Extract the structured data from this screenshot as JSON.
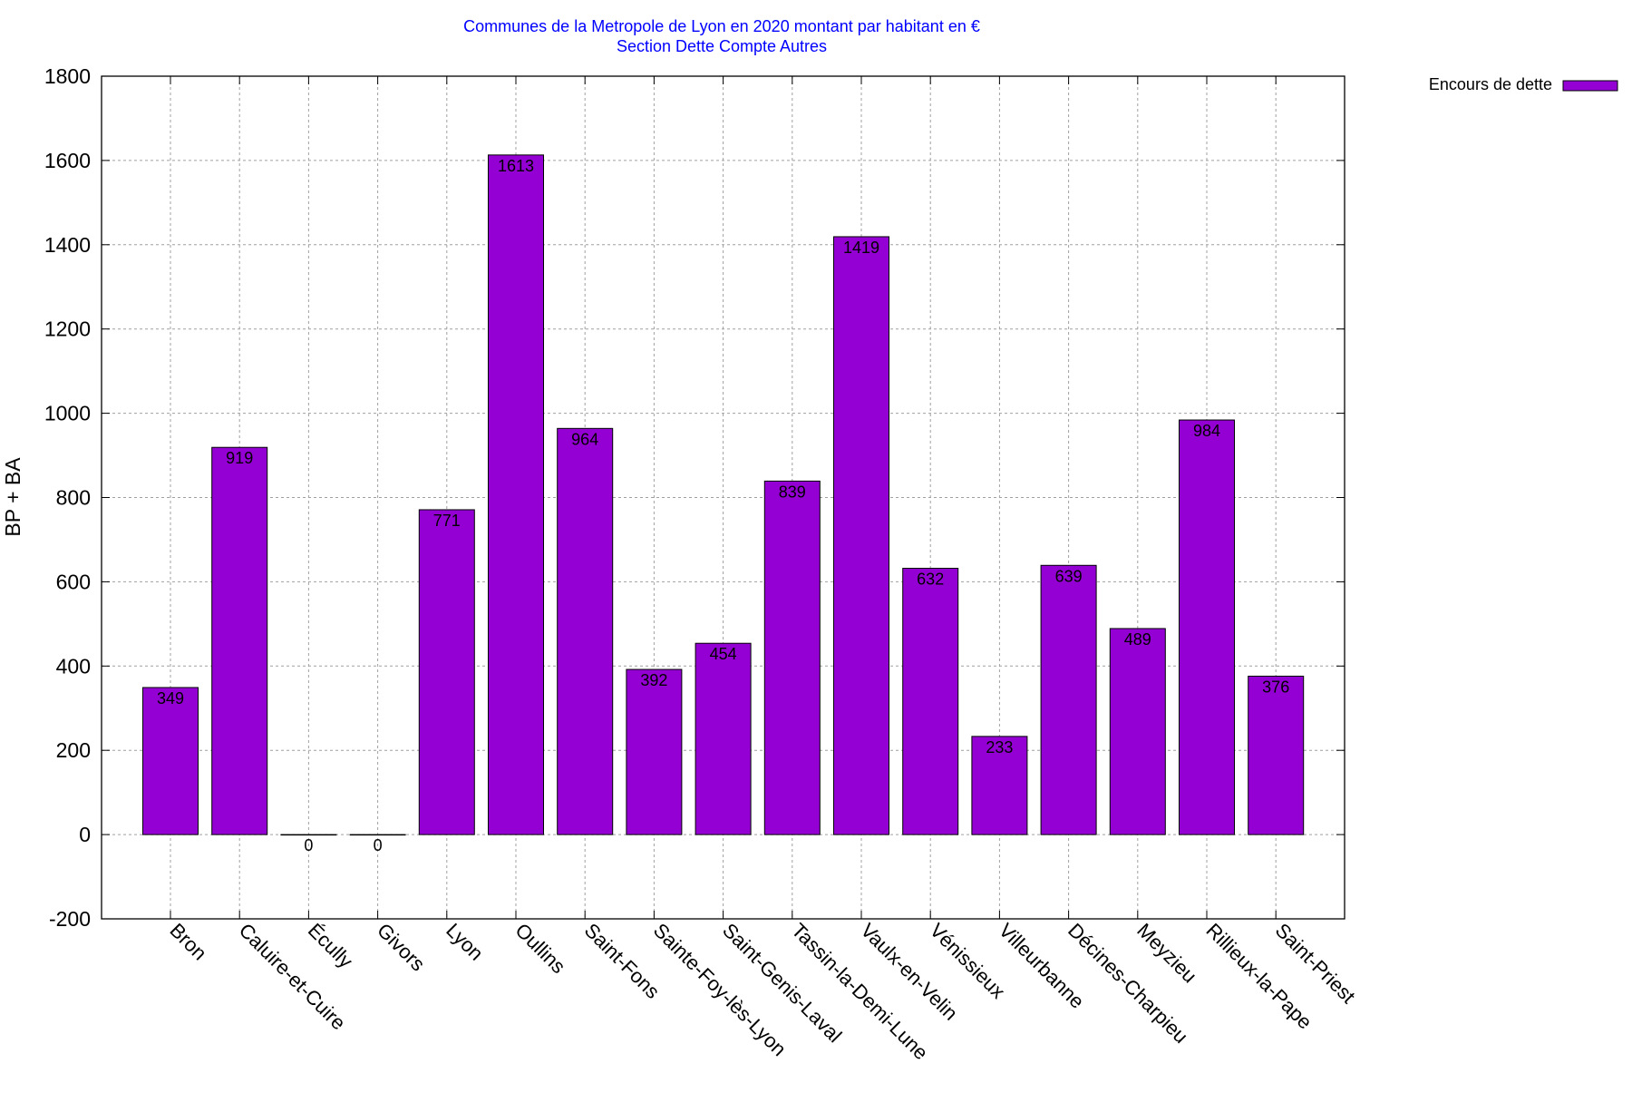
{
  "chart_data": {
    "type": "bar",
    "title": "Communes de la Metropole de Lyon en 2020 montant par habitant en €",
    "subtitle": "Section Dette Compte Autres",
    "xlabel": "",
    "ylabel": "BP + BA",
    "ylim": [
      -200,
      1800
    ],
    "yticks": [
      -200,
      0,
      200,
      400,
      600,
      800,
      1000,
      1200,
      1400,
      1600,
      1800
    ],
    "grid": true,
    "legend_position": "top-right",
    "categories": [
      "Bron",
      "Caluire-et-Cuire",
      "Écully",
      "Givors",
      "Lyon",
      "Oullins",
      "Saint-Fons",
      "Sainte-Foy-lès-Lyon",
      "Saint-Genis-Laval",
      "Tassin-la-Demi-Lune",
      "Vaulx-en-Velin",
      "Vénissieux",
      "Villeurbanne",
      "Décines-Charpieu",
      "Meyzieu",
      "Rillieux-la-Pape",
      "Saint-Priest"
    ],
    "series": [
      {
        "name": "Encours de dette",
        "color": "#9400d3",
        "values": [
          349,
          919,
          0,
          0,
          771,
          1613,
          964,
          392,
          454,
          839,
          1419,
          632,
          233,
          639,
          489,
          984,
          376
        ]
      }
    ]
  },
  "colors": {
    "title": "#0000ff",
    "bar": "#9400d3",
    "grid": "#a0a0a0"
  }
}
